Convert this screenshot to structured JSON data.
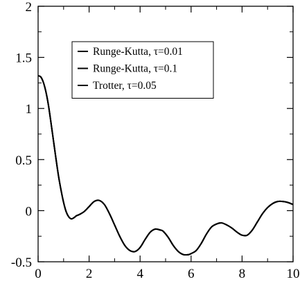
{
  "chart_data": {
    "type": "line",
    "title": "",
    "xlabel": "",
    "ylabel": "",
    "xlim": [
      0,
      10
    ],
    "ylim": [
      -0.5,
      2
    ],
    "xticks": [
      "0",
      "2",
      "4",
      "6",
      "8",
      "10"
    ],
    "yticks": [
      "-0.5",
      "0",
      "0.5",
      "1",
      "1.5",
      "2"
    ],
    "grid": false,
    "legend_position": "top-center",
    "series": [
      {
        "name": "Runge-Kutta, τ=0.01",
        "color": "#000000",
        "x": [
          0,
          0.1,
          0.2,
          0.3,
          0.4,
          0.5,
          0.6,
          0.7,
          0.8,
          0.9,
          1.0,
          1.1,
          1.2,
          1.3,
          1.4,
          1.5,
          1.6,
          1.8,
          2.0,
          2.2,
          2.4,
          2.6,
          2.8,
          3.0,
          3.2,
          3.4,
          3.6,
          3.8,
          4.0,
          4.2,
          4.4,
          4.6,
          4.8,
          4.9,
          5.1,
          5.3,
          5.5,
          5.7,
          5.9,
          6.0,
          6.2,
          6.4,
          6.6,
          6.8,
          7.0,
          7.2,
          7.4,
          7.6,
          7.8,
          8.0,
          8.2,
          8.4,
          8.6,
          8.8,
          9.0,
          9.2,
          9.4,
          9.6,
          9.8,
          10.0
        ],
        "y": [
          1.32,
          1.31,
          1.26,
          1.17,
          1.04,
          0.87,
          0.69,
          0.51,
          0.34,
          0.2,
          0.08,
          -0.01,
          -0.06,
          -0.08,
          -0.07,
          -0.05,
          -0.04,
          -0.01,
          0.04,
          0.09,
          0.1,
          0.06,
          -0.03,
          -0.14,
          -0.25,
          -0.34,
          -0.39,
          -0.4,
          -0.36,
          -0.28,
          -0.21,
          -0.18,
          -0.19,
          -0.2,
          -0.26,
          -0.34,
          -0.4,
          -0.43,
          -0.43,
          -0.42,
          -0.39,
          -0.32,
          -0.23,
          -0.16,
          -0.13,
          -0.12,
          -0.14,
          -0.17,
          -0.21,
          -0.24,
          -0.24,
          -0.19,
          -0.11,
          -0.03,
          0.03,
          0.07,
          0.09,
          0.09,
          0.08,
          0.06
        ]
      },
      {
        "name": "Runge-Kutta, τ=0.1",
        "color": "#000000",
        "x": [
          0,
          0.1,
          0.2,
          0.3,
          0.4,
          0.5,
          0.6,
          0.7,
          0.8,
          0.9,
          1.0,
          1.1,
          1.2,
          1.3,
          1.4,
          1.5,
          1.6,
          1.8,
          2.0,
          2.2,
          2.4,
          2.6,
          2.8,
          3.0,
          3.2,
          3.4,
          3.6,
          3.8,
          4.0,
          4.2,
          4.4,
          4.6,
          4.8,
          4.9,
          5.1,
          5.3,
          5.5,
          5.7,
          5.9,
          6.0,
          6.2,
          6.4,
          6.6,
          6.8,
          7.0,
          7.2,
          7.4,
          7.6,
          7.8,
          8.0,
          8.2,
          8.4,
          8.6,
          8.8,
          9.0,
          9.2,
          9.4,
          9.6,
          9.8,
          10.0
        ],
        "y": [
          1.32,
          1.31,
          1.26,
          1.17,
          1.04,
          0.87,
          0.69,
          0.51,
          0.34,
          0.2,
          0.08,
          -0.01,
          -0.06,
          -0.08,
          -0.07,
          -0.05,
          -0.04,
          -0.01,
          0.04,
          0.09,
          0.1,
          0.06,
          -0.03,
          -0.14,
          -0.25,
          -0.34,
          -0.39,
          -0.4,
          -0.36,
          -0.28,
          -0.21,
          -0.18,
          -0.19,
          -0.2,
          -0.26,
          -0.34,
          -0.4,
          -0.43,
          -0.43,
          -0.42,
          -0.39,
          -0.32,
          -0.23,
          -0.16,
          -0.13,
          -0.12,
          -0.14,
          -0.17,
          -0.21,
          -0.24,
          -0.24,
          -0.19,
          -0.11,
          -0.03,
          0.03,
          0.07,
          0.09,
          0.09,
          0.08,
          0.06
        ]
      },
      {
        "name": "Trotter, τ=0.05",
        "color": "#000000",
        "x": [
          0,
          0.1,
          0.2,
          0.3,
          0.4,
          0.5,
          0.6,
          0.7,
          0.8,
          0.9,
          1.0,
          1.1,
          1.2,
          1.3,
          1.4,
          1.5,
          1.6,
          1.8,
          2.0,
          2.2,
          2.4,
          2.6,
          2.8,
          3.0,
          3.2,
          3.4,
          3.6,
          3.8,
          4.0,
          4.2,
          4.4,
          4.6,
          4.8,
          4.9,
          5.1,
          5.3,
          5.5,
          5.7,
          5.9,
          6.0,
          6.2,
          6.4,
          6.6,
          6.8,
          7.0,
          7.2,
          7.4,
          7.6,
          7.8,
          8.0,
          8.2,
          8.4,
          8.6,
          8.8,
          9.0,
          9.2,
          9.4,
          9.6,
          9.8,
          10.0
        ],
        "y": [
          1.32,
          1.31,
          1.26,
          1.17,
          1.04,
          0.87,
          0.69,
          0.51,
          0.34,
          0.2,
          0.08,
          -0.01,
          -0.06,
          -0.08,
          -0.07,
          -0.05,
          -0.04,
          -0.01,
          0.04,
          0.09,
          0.1,
          0.06,
          -0.03,
          -0.14,
          -0.25,
          -0.34,
          -0.39,
          -0.4,
          -0.36,
          -0.28,
          -0.21,
          -0.18,
          -0.19,
          -0.2,
          -0.26,
          -0.34,
          -0.4,
          -0.43,
          -0.43,
          -0.42,
          -0.39,
          -0.32,
          -0.23,
          -0.16,
          -0.13,
          -0.12,
          -0.14,
          -0.17,
          -0.21,
          -0.24,
          -0.24,
          -0.19,
          -0.11,
          -0.03,
          0.03,
          0.07,
          0.09,
          0.09,
          0.08,
          0.06
        ]
      }
    ]
  }
}
